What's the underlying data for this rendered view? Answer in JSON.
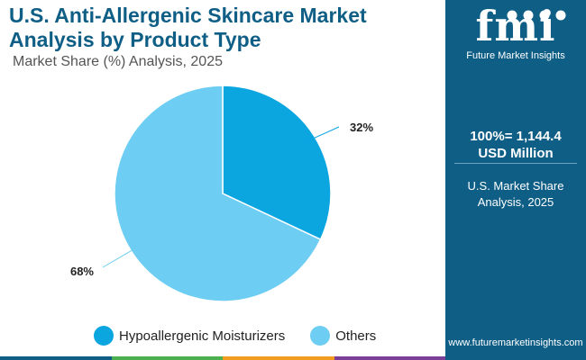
{
  "title": "U.S. Anti-Allergenic Skincare Market Analysis by Product Type",
  "subtitle": "Market Share (%) Analysis, 2025",
  "sidebar": {
    "logo_text": "fmi",
    "logo_subtitle": "Future Market Insights",
    "total_line1": "100%= 1,144.4",
    "total_line2": "USD Million",
    "caption_line1": "U.S. Market Share",
    "caption_line2": "Analysis, 2025",
    "url": "www.futuremarketinsights.com"
  },
  "colors": {
    "brand": "#0f5e86",
    "series": [
      "#0ba5e0",
      "#6dcdf2"
    ],
    "bottom_bar": [
      "#0f5e86",
      "#4caf50",
      "#f29c1f",
      "#7b3f98"
    ]
  },
  "chart_data": {
    "type": "pie",
    "categories": [
      "Hypoallergenic Moisturizers",
      "Others"
    ],
    "values": [
      32,
      68
    ],
    "data_labels": [
      "32%",
      "68%"
    ],
    "start_angle": "12 o'clock",
    "direction": "clockwise",
    "legend_position": "bottom"
  }
}
